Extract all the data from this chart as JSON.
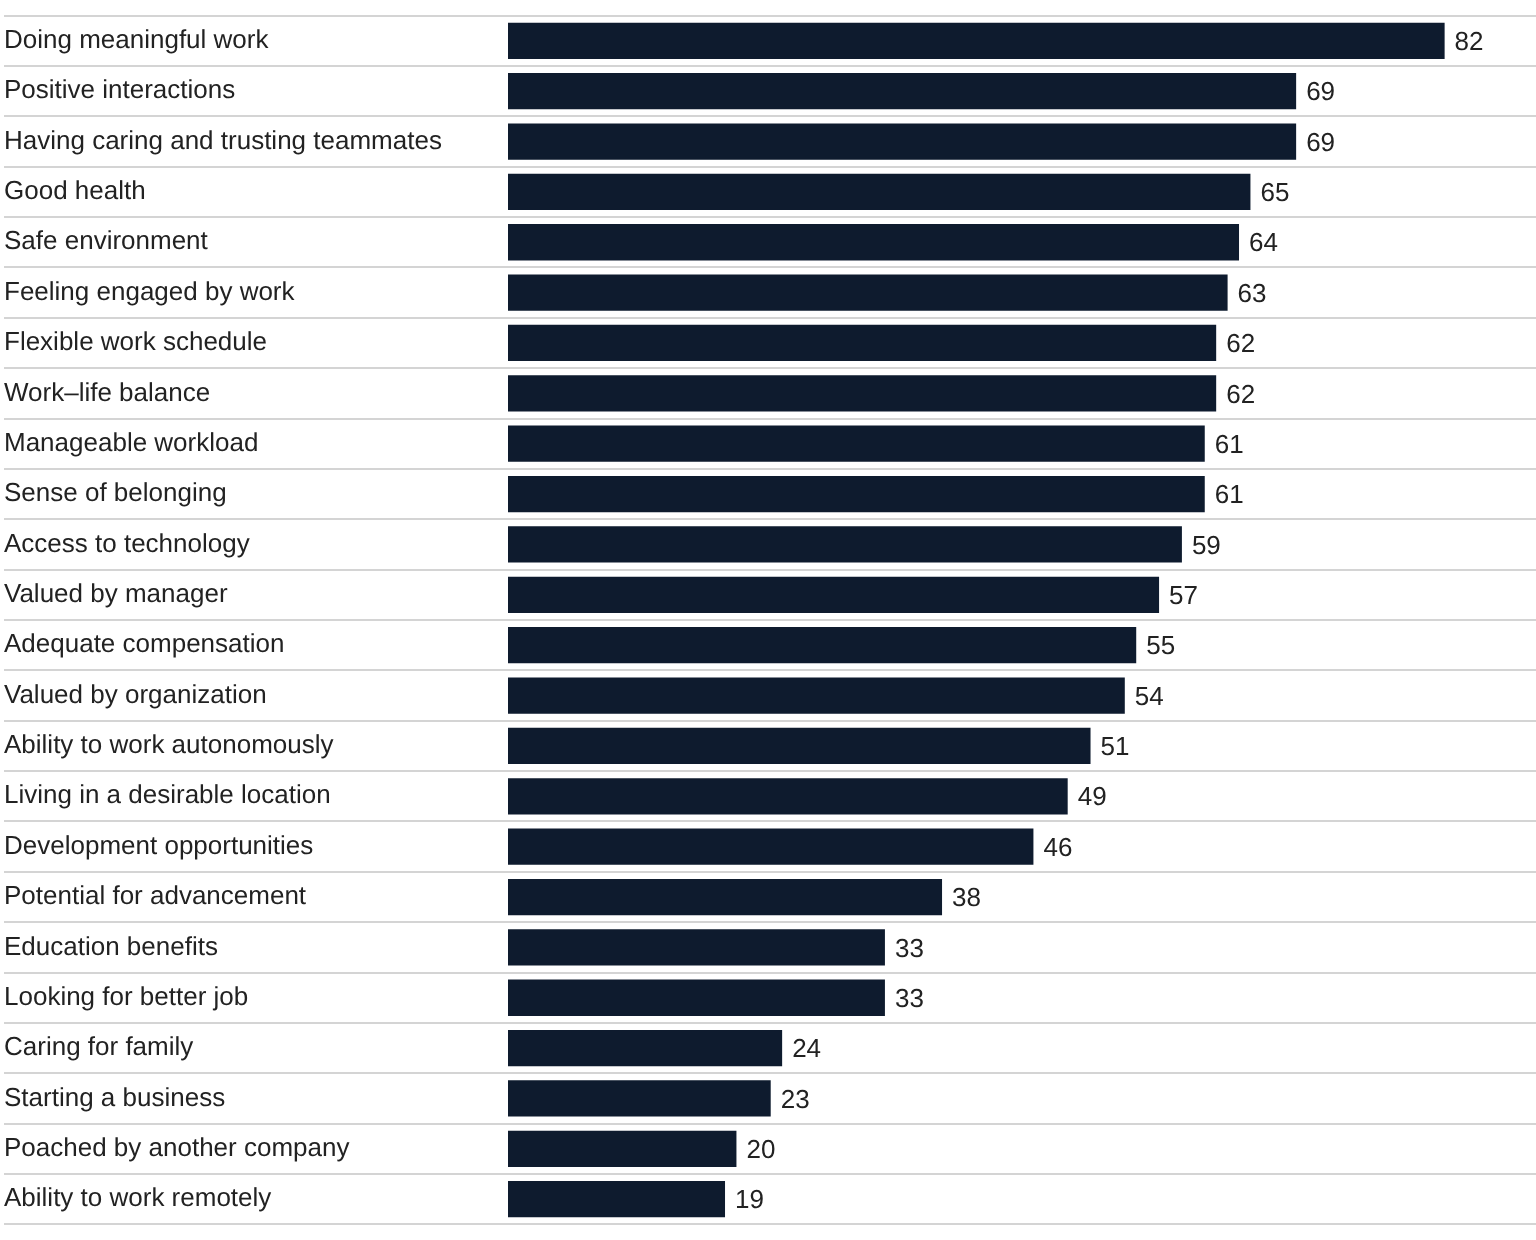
{
  "chart_data": {
    "type": "bar",
    "orientation": "horizontal",
    "categories": [
      "Doing meaningful work",
      "Positive interactions",
      "Having caring and trusting teammates",
      "Good health",
      "Safe environment",
      "Feeling engaged by work",
      "Flexible work schedule",
      "Work–life balance",
      "Manageable workload",
      "Sense of belonging",
      "Access to technology",
      "Valued by manager",
      "Adequate compensation",
      "Valued by organization",
      "Ability to work autonomously",
      "Living in a desirable location",
      "Development opportunities",
      "Potential for advancement",
      "Education benefits",
      "Looking for better job",
      "Caring for family",
      "Starting a business",
      "Poached by another company",
      "Ability to work remotely"
    ],
    "values": [
      82,
      69,
      69,
      65,
      64,
      63,
      62,
      62,
      61,
      61,
      59,
      57,
      55,
      54,
      51,
      49,
      46,
      38,
      33,
      33,
      24,
      23,
      20,
      19
    ],
    "color": "#0e1b2e",
    "xlim": [
      0,
      90
    ],
    "tick_labels": "y",
    "grid": "y",
    "legend": false,
    "data_labels": true
  }
}
